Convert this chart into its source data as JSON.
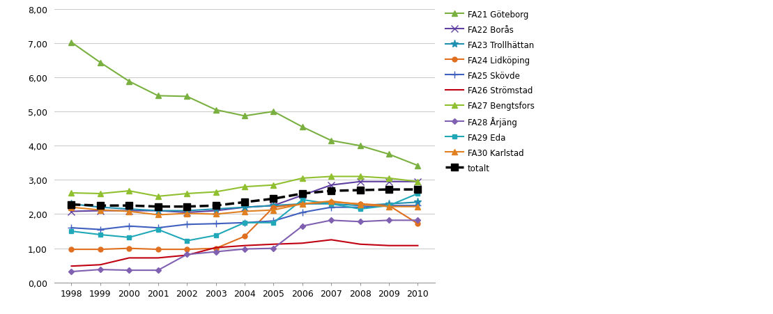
{
  "years": [
    1998,
    1999,
    2000,
    2001,
    2002,
    2003,
    2004,
    2005,
    2006,
    2007,
    2008,
    2009,
    2010
  ],
  "series_order": [
    "FA21 Göteborg",
    "FA22 Borås",
    "FA23 Trollhättan",
    "FA24 Lidköping",
    "FA25 Skövde",
    "FA26 Strömstad",
    "FA27 Bengtsfors",
    "FA28 Årjäng",
    "FA29 Eda",
    "FA30 Karlstad",
    "totalt"
  ],
  "series": {
    "FA21 Göteborg": {
      "values": [
        7.02,
        6.43,
        5.88,
        5.46,
        5.44,
        5.05,
        4.87,
        5.0,
        4.55,
        4.15,
        4.0,
        3.75,
        3.42
      ],
      "color": "#7AB040",
      "marker": "^",
      "linewidth": 1.5,
      "markersize": 6,
      "linestyle": "-"
    },
    "FA22 Borås": {
      "values": [
        2.08,
        2.1,
        2.1,
        2.1,
        2.05,
        2.1,
        2.2,
        2.25,
        2.55,
        2.85,
        2.95,
        2.95,
        2.95
      ],
      "color": "#6040A0",
      "marker": "x",
      "linewidth": 1.5,
      "markersize": 7,
      "linestyle": "-"
    },
    "FA23 Trollhättan": {
      "values": [
        2.3,
        2.2,
        2.15,
        2.1,
        2.1,
        2.15,
        2.2,
        2.25,
        2.3,
        2.3,
        2.25,
        2.3,
        2.35
      ],
      "color": "#2090B0",
      "marker": "*",
      "linewidth": 1.5,
      "markersize": 8,
      "linestyle": "-"
    },
    "FA24 Lidköping": {
      "values": [
        0.97,
        0.97,
        1.0,
        0.97,
        0.97,
        1.0,
        1.35,
        2.2,
        2.3,
        2.35,
        2.3,
        2.25,
        1.72
      ],
      "color": "#E07020",
      "marker": "o",
      "linewidth": 1.5,
      "markersize": 5,
      "linestyle": "-"
    },
    "FA25 Skövde": {
      "values": [
        1.6,
        1.55,
        1.65,
        1.6,
        1.7,
        1.72,
        1.75,
        1.8,
        2.05,
        2.2,
        2.2,
        2.25,
        2.25
      ],
      "color": "#4060C0",
      "marker": "+",
      "linewidth": 1.5,
      "markersize": 7,
      "linestyle": "-"
    },
    "FA26 Strömstad": {
      "values": [
        0.48,
        0.52,
        0.72,
        0.72,
        0.8,
        1.02,
        1.08,
        1.12,
        1.15,
        1.25,
        1.12,
        1.08,
        1.08
      ],
      "color": "#C00010",
      "marker": null,
      "linewidth": 1.5,
      "markersize": 0,
      "linestyle": "-"
    },
    "FA27 Bengtsfors": {
      "values": [
        2.62,
        2.6,
        2.68,
        2.52,
        2.6,
        2.65,
        2.8,
        2.85,
        3.05,
        3.1,
        3.1,
        3.05,
        2.95
      ],
      "color": "#90C030",
      "marker": "^",
      "linewidth": 1.5,
      "markersize": 6,
      "linestyle": "-"
    },
    "FA28 Årjäng": {
      "values": [
        0.32,
        0.38,
        0.36,
        0.36,
        0.82,
        0.9,
        0.98,
        1.0,
        1.65,
        1.82,
        1.78,
        1.82,
        1.82
      ],
      "color": "#8060B0",
      "marker": "D",
      "linewidth": 1.5,
      "markersize": 4,
      "linestyle": "-"
    },
    "FA29 Eda": {
      "values": [
        1.5,
        1.4,
        1.32,
        1.55,
        1.22,
        1.38,
        1.75,
        1.75,
        2.42,
        2.3,
        2.15,
        2.25,
        2.6
      ],
      "color": "#20A8B8",
      "marker": "s",
      "linewidth": 1.5,
      "markersize": 5,
      "linestyle": "-"
    },
    "FA30 Karlstad": {
      "values": [
        2.2,
        2.12,
        2.08,
        1.98,
        2.02,
        2.0,
        2.08,
        2.12,
        2.3,
        2.38,
        2.28,
        2.22,
        2.22
      ],
      "color": "#E08020",
      "marker": "^",
      "linewidth": 1.5,
      "markersize": 6,
      "linestyle": "-"
    },
    "totalt": {
      "values": [
        2.28,
        2.25,
        2.25,
        2.22,
        2.22,
        2.25,
        2.35,
        2.45,
        2.6,
        2.68,
        2.7,
        2.72,
        2.72
      ],
      "color": "#000000",
      "marker": "s",
      "linewidth": 2.5,
      "markersize": 7,
      "linestyle": "--"
    }
  },
  "ylim": [
    0.0,
    8.0
  ],
  "yticks": [
    0.0,
    1.0,
    2.0,
    3.0,
    4.0,
    5.0,
    6.0,
    7.0,
    8.0
  ],
  "ytick_labels": [
    "0,00",
    "1,00",
    "2,00",
    "3,00",
    "4,00",
    "5,00",
    "6,00",
    "7,00",
    "8,00"
  ],
  "background_color": "#FFFFFF",
  "grid_color": "#CCCCCC",
  "legend_fontsize": 8.5,
  "tick_fontsize": 9
}
